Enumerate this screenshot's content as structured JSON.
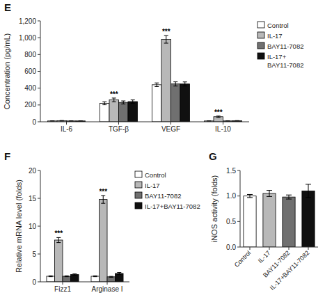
{
  "chart_data": [
    {
      "type": "bar",
      "title": "E",
      "y_label": "Concentration (pg/mL)",
      "categories": [
        "IL-6",
        "TGF-β",
        "VEGF",
        "IL-10"
      ],
      "series": [
        {
          "name": "Control",
          "color": "white",
          "values": [
            10,
            220,
            440,
            10
          ],
          "errors": [
            2,
            18,
            22,
            2
          ]
        },
        {
          "name": "IL-17",
          "color": "#b8b8b8",
          "values": [
            12,
            260,
            980,
            60
          ],
          "errors": [
            3,
            22,
            45,
            8
          ]
        },
        {
          "name": "BAY11-7082",
          "color": "#707070",
          "values": [
            10,
            230,
            450,
            10
          ],
          "errors": [
            2,
            18,
            25,
            2
          ]
        },
        {
          "name": "IL-17+\nBAY11-7082",
          "color": "#101010",
          "values": [
            10,
            240,
            450,
            12
          ],
          "errors": [
            2,
            20,
            24,
            2
          ]
        }
      ],
      "ylim": [
        0,
        1200
      ],
      "yticks": [
        0,
        200,
        400,
        600,
        800,
        {
          "value": 1000,
          "label": "1,000"
        },
        {
          "value": 1200,
          "label": "1,200"
        }
      ],
      "annotations": [
        {
          "text": "***",
          "category": "TGF-β",
          "series": "IL-17"
        },
        {
          "text": "***",
          "category": "VEGF",
          "series": "IL-17"
        },
        {
          "text": "***",
          "category": "IL-10",
          "series": "IL-17"
        }
      ],
      "legend": "upper right",
      "grid": false
    },
    {
      "type": "bar",
      "title": "F",
      "y_label": "Relative mRNA level (folds)",
      "categories": [
        "Fizz1",
        "Arginase I"
      ],
      "series": [
        {
          "name": "Control",
          "color": "white",
          "values": [
            1.0,
            1.0
          ],
          "errors": [
            0.08,
            0.08
          ]
        },
        {
          "name": "IL-17",
          "color": "#b8b8b8",
          "values": [
            7.5,
            14.8
          ],
          "errors": [
            0.45,
            0.7
          ]
        },
        {
          "name": "BAY11-7082",
          "color": "#707070",
          "values": [
            1.0,
            0.9
          ],
          "errors": [
            0.08,
            0.08
          ]
        },
        {
          "name": "IL-17+BAY11-7082",
          "color": "#101010",
          "values": [
            1.3,
            1.5
          ],
          "errors": [
            0.12,
            0.18
          ]
        }
      ],
      "ylim": [
        0,
        20
      ],
      "yticks": [
        0,
        5,
        10,
        15,
        20
      ],
      "annotations": [
        {
          "text": "***",
          "category": "Fizz1",
          "series": "IL-17"
        },
        {
          "text": "***",
          "category": "Arginase I",
          "series": "IL-17"
        }
      ],
      "legend": "upper right",
      "grid": false
    },
    {
      "type": "bar",
      "title": "G",
      "y_label": "iNOS activity (folds)",
      "categories": [
        "Control",
        "IL-17",
        "BAY11-7082",
        "IL-17+BAY11-7082"
      ],
      "values": [
        1.0,
        1.05,
        0.98,
        1.1
      ],
      "errors": [
        0.03,
        0.06,
        0.04,
        0.13
      ],
      "colors": [
        "white",
        "#b8b8b8",
        "#707070",
        "#101010"
      ],
      "ylim": [
        0.0,
        1.5
      ],
      "yticks": [
        {
          "value": 0.0,
          "label": "0.0"
        },
        0.5,
        {
          "value": 1.0,
          "label": "1.0"
        },
        1.5
      ],
      "grid": false
    }
  ]
}
